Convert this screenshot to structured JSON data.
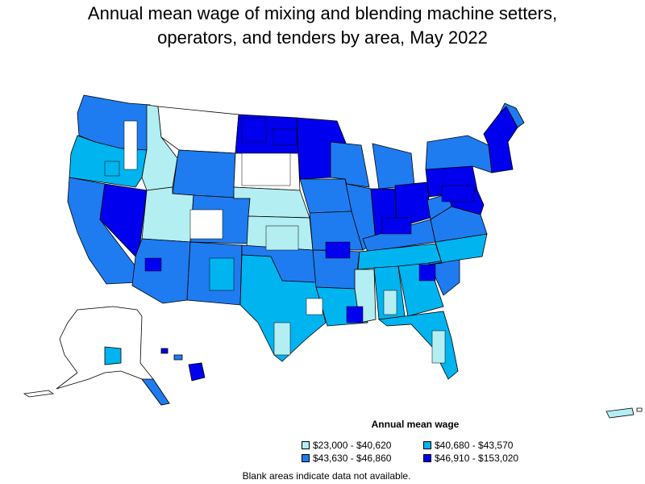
{
  "title_line1": "Annual mean wage of mixing and blending machine setters,",
  "title_line2": "operators, and tenders by area, May 2022",
  "legend": {
    "title": "Annual mean wage",
    "items": [
      {
        "label": "$23,000 - $40,620",
        "color": "#b3eef2"
      },
      {
        "label": "$40,680 - $43,570",
        "color": "#00b4f0"
      },
      {
        "label": "$43,630 - $46,860",
        "color": "#1e7cf0"
      },
      {
        "label": "$46,910 - $153,020",
        "color": "#0000ee"
      }
    ]
  },
  "footnote": "Blank areas indicate data not available.",
  "colors": {
    "border": "#000000",
    "blank": "#ffffff"
  }
}
